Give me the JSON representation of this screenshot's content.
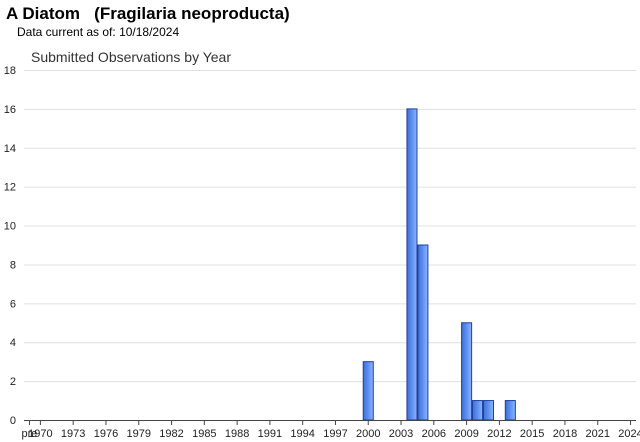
{
  "header": {
    "species_common": "A Diatom",
    "species_scientific": "(Fragilaria neoproducta)",
    "data_current_label": "Data current as of:",
    "data_current_date": "10/18/2024"
  },
  "colors": {
    "bar_fill": "#5b8def",
    "bar_stroke": "#1f3f9a",
    "grid": "#e0e0e0",
    "axis": "#444444"
  },
  "chart_data": {
    "type": "bar",
    "title": "Submitted Observations by Year",
    "xlabel": "",
    "ylabel": "",
    "ylim": [
      0,
      18
    ],
    "yticks": [
      0,
      2,
      4,
      6,
      8,
      10,
      12,
      14,
      16,
      18
    ],
    "grid": true,
    "legend": "none",
    "categories": [
      "pre",
      "1970",
      "1971",
      "1972",
      "1973",
      "1974",
      "1975",
      "1976",
      "1977",
      "1978",
      "1979",
      "1980",
      "1981",
      "1982",
      "1983",
      "1984",
      "1985",
      "1986",
      "1987",
      "1988",
      "1989",
      "1990",
      "1991",
      "1992",
      "1993",
      "1994",
      "1995",
      "1996",
      "1997",
      "1998",
      "1999",
      "2000",
      "2001",
      "2002",
      "2003",
      "2004",
      "2005",
      "2006",
      "2007",
      "2008",
      "2009",
      "2010",
      "2011",
      "2012",
      "2013",
      "2014",
      "2015",
      "2016",
      "2017",
      "2018",
      "2019",
      "2020",
      "2021",
      "2022",
      "2023",
      "2024"
    ],
    "x_tick_labels": [
      "pre",
      "1970",
      "1973",
      "1976",
      "1979",
      "1982",
      "1985",
      "1988",
      "1991",
      "1994",
      "1997",
      "2000",
      "2003",
      "2006",
      "2009",
      "2012",
      "2015",
      "2018",
      "2021",
      "2024"
    ],
    "values": [
      0,
      0,
      0,
      0,
      0,
      0,
      0,
      0,
      0,
      0,
      0,
      0,
      0,
      0,
      0,
      0,
      0,
      0,
      0,
      0,
      0,
      0,
      0,
      0,
      0,
      0,
      0,
      0,
      0,
      0,
      0,
      3,
      0,
      0,
      0,
      16,
      9,
      0,
      0,
      0,
      5,
      1,
      1,
      0,
      1,
      0,
      0,
      0,
      0,
      0,
      0,
      0,
      0,
      0,
      0,
      0
    ]
  }
}
